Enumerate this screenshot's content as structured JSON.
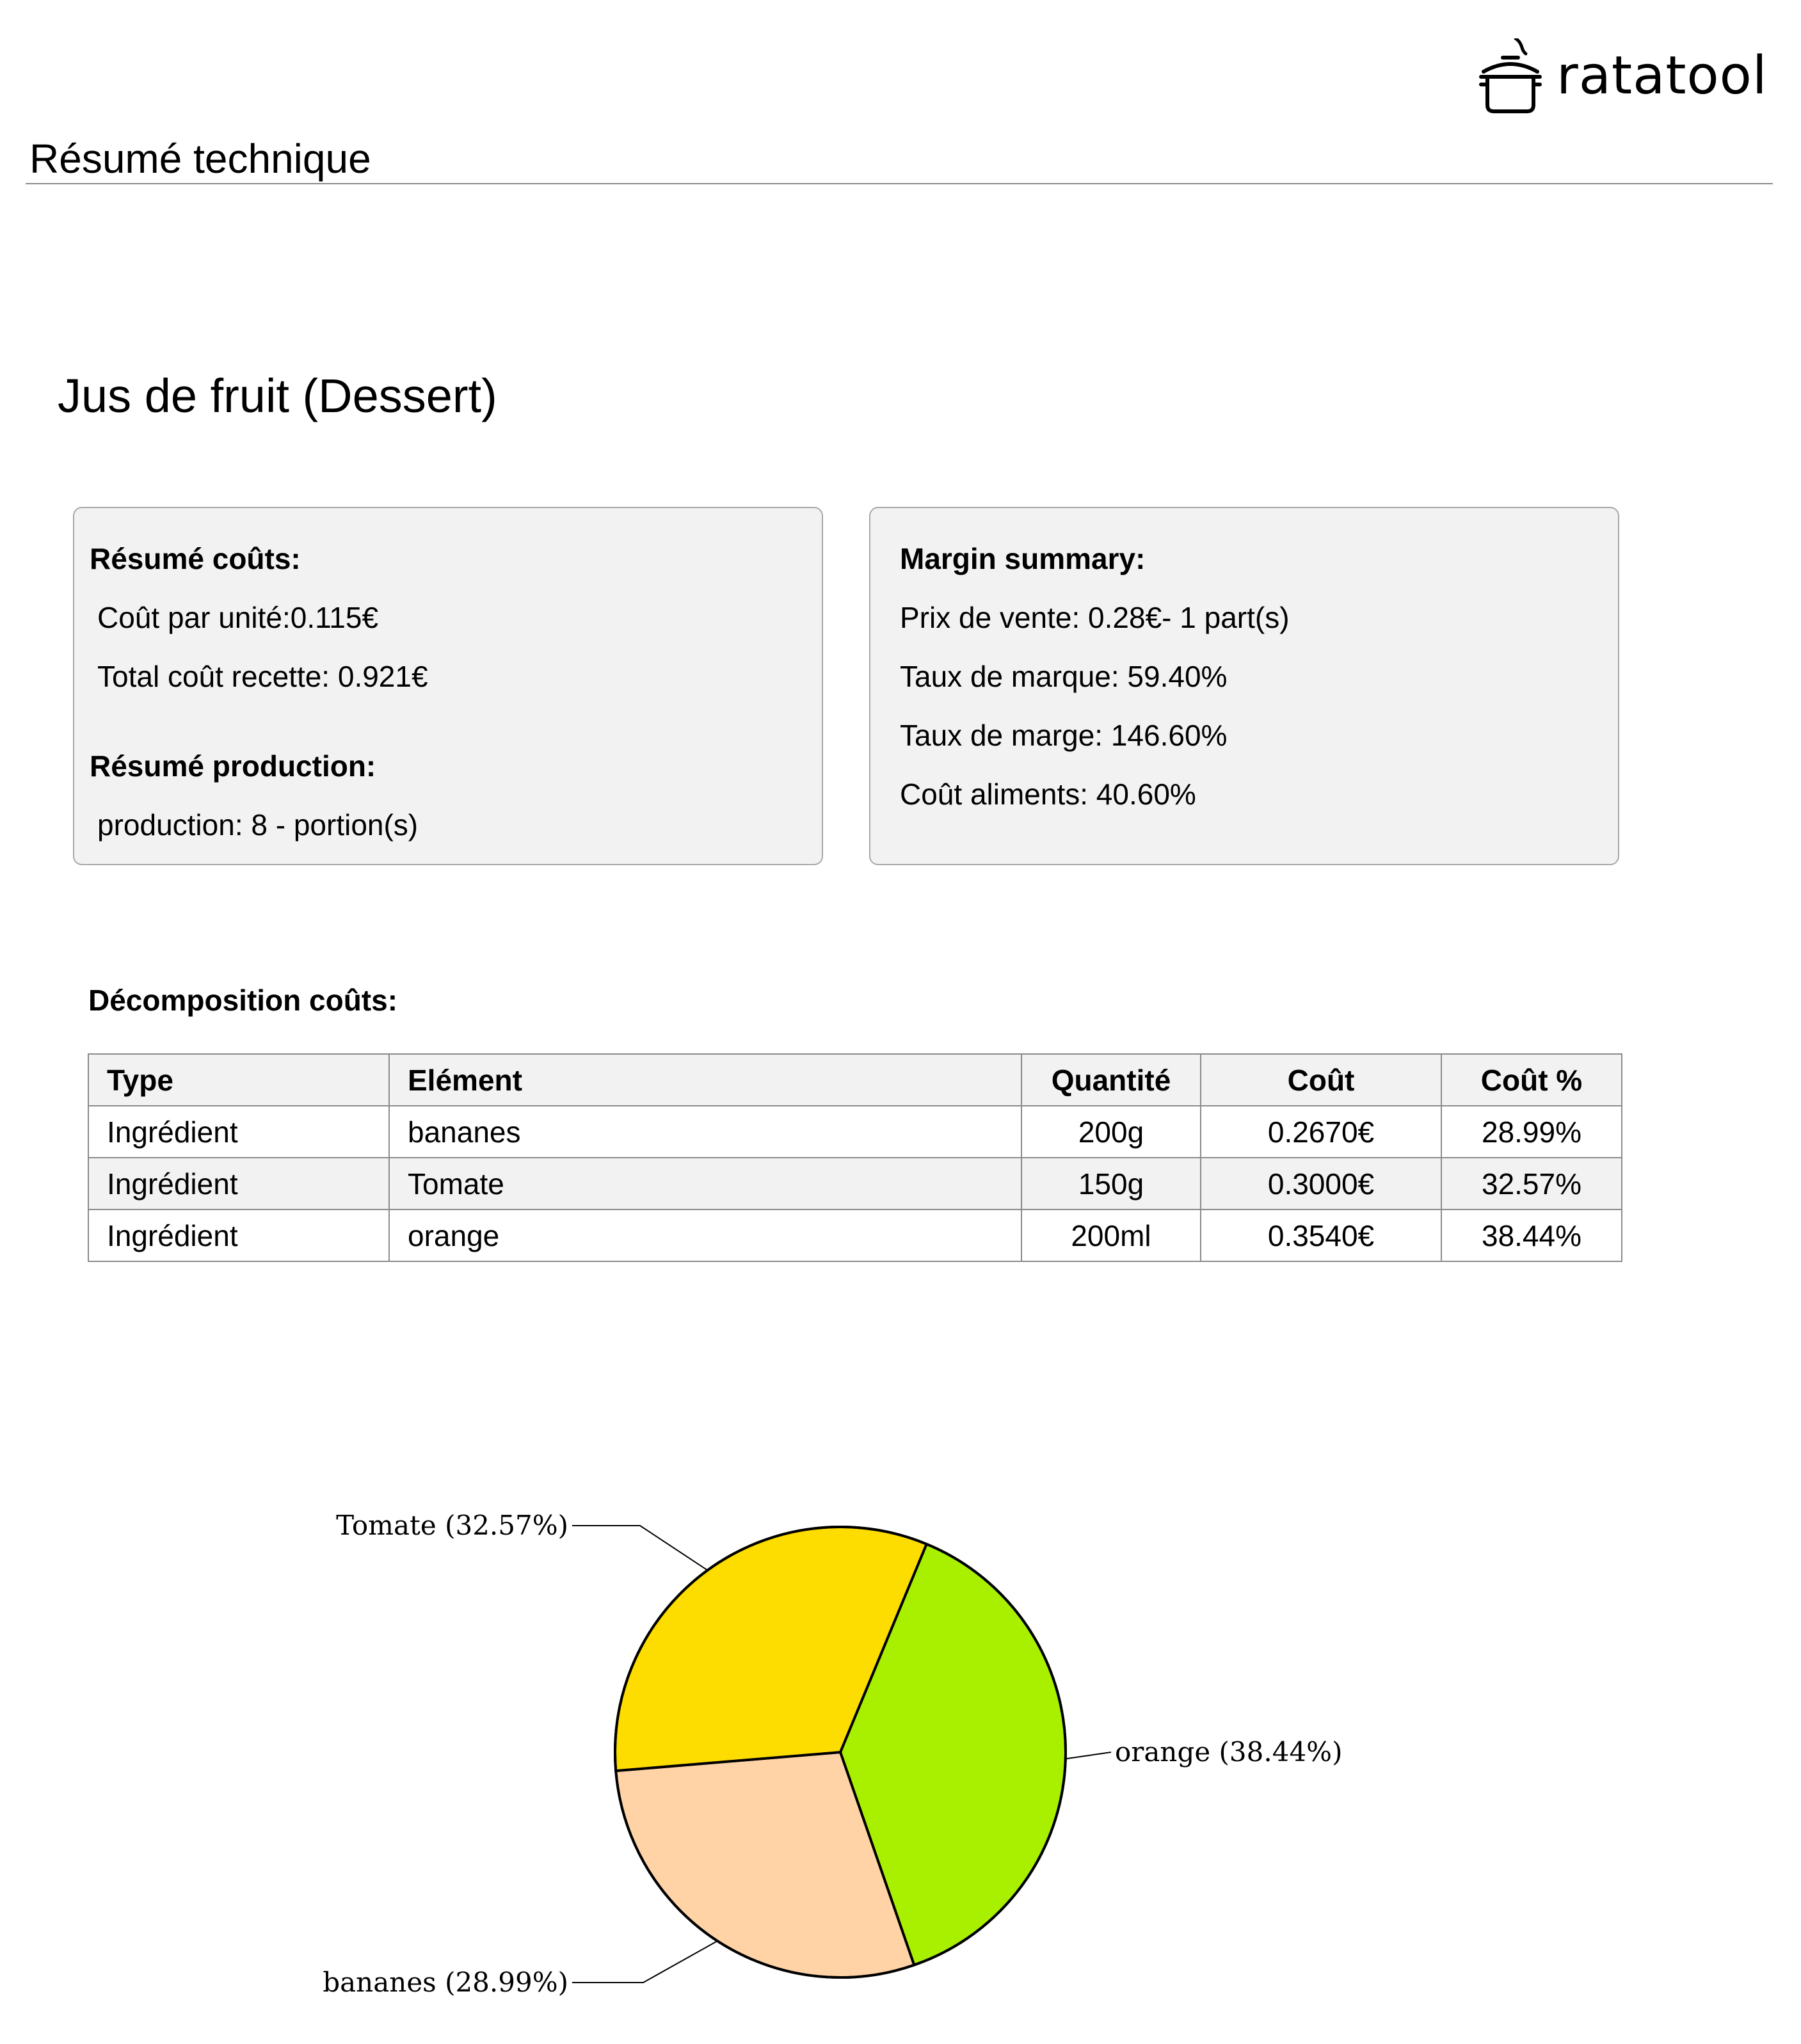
{
  "brand": {
    "name": "ratatool",
    "icon": "cooking-pot-icon"
  },
  "header": {
    "title": "Résumé technique"
  },
  "recipe": {
    "title": "Jus de fruit (Dessert)"
  },
  "cost_summary": {
    "heading": "Résumé coûts:",
    "cost_per_unit": "Coût par unité:0.115€",
    "total_cost": "Total coût recette: 0.921€"
  },
  "production_summary": {
    "heading": "Résumé production:",
    "production": "production: 8 - portion(s)"
  },
  "margin_summary": {
    "heading": "Margin summary:",
    "selling_price": "Prix de vente: 0.28€- 1 part(s)",
    "markup_rate": "Taux de marque: 59.40%",
    "margin_rate": "Taux de marge: 146.60%",
    "food_cost": "Coût aliments: 40.60%"
  },
  "breakdown": {
    "heading": "Décomposition coûts:",
    "columns": [
      "Type",
      "Elément",
      "Quantité",
      "Coût",
      "Coût %"
    ],
    "rows": [
      [
        "Ingrédient",
        "bananes",
        "200g",
        "0.2670€",
        "28.99%"
      ],
      [
        "Ingrédient",
        "Tomate",
        "150g",
        "0.3000€",
        "32.57%"
      ],
      [
        "Ingrédient",
        "orange",
        "200ml",
        "0.3540€",
        "38.44%"
      ]
    ]
  },
  "chart_data": {
    "type": "pie",
    "title": "",
    "slices": [
      {
        "label": "orange (38.44%)",
        "name": "orange",
        "value": 38.44,
        "color": "#a8f000"
      },
      {
        "label": "bananes (28.99%)",
        "name": "bananes",
        "value": 28.99,
        "color": "#ffd3a6"
      },
      {
        "label": "Tomate (32.57%)",
        "name": "Tomate",
        "value": 32.57,
        "color": "#fddc00"
      }
    ]
  }
}
